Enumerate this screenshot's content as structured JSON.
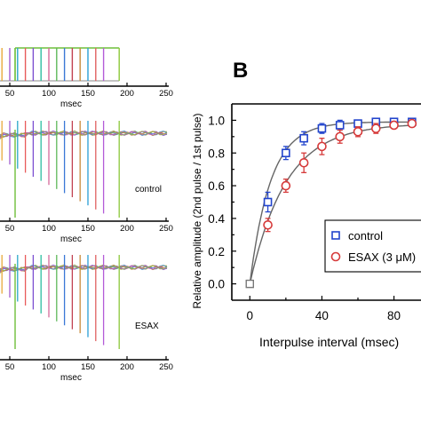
{
  "panel_label": "B",
  "chart_data": [
    {
      "id": "stimulus",
      "type": "line",
      "xlabel": "msec",
      "xlim": [
        0,
        250
      ],
      "xticks": [
        50,
        100,
        150,
        200,
        250
      ],
      "interval_starts": [
        40,
        50,
        60,
        70,
        80,
        90,
        100,
        110,
        120,
        130,
        140,
        150,
        160,
        170,
        190
      ],
      "colors": [
        "#e8a93a",
        "#a25cd0",
        "#2aa7c9",
        "#e85a5a",
        "#7c4fd0",
        "#2dbfa0",
        "#d66a9a",
        "#5eb85a",
        "#3a78d6",
        "#c04050",
        "#c78a3a",
        "#2a9fd6",
        "#e06060",
        "#b45cd8",
        "#8cc83a"
      ]
    },
    {
      "id": "control-traces",
      "type": "line",
      "label": "control",
      "xlabel": "msec",
      "xlim": [
        0,
        250
      ],
      "xticks": [
        50,
        100,
        150,
        200,
        250
      ]
    },
    {
      "id": "esax-traces",
      "type": "line",
      "label": "ESAX",
      "xlabel": "msec",
      "xlim": [
        0,
        250
      ],
      "xticks": [
        50,
        100,
        150,
        200,
        250
      ]
    },
    {
      "id": "paired-pulse",
      "type": "scatter",
      "xlabel": "Interpulse interval (msec)",
      "ylabel": "Relative amplitude (2nd pulse / 1st pulse)",
      "xlim": [
        -10,
        95
      ],
      "ylim": [
        -0.1,
        1.1
      ],
      "xticks": [
        0,
        40,
        80
      ],
      "yticks": [
        0.0,
        0.2,
        0.4,
        0.6,
        0.8,
        1.0
      ],
      "ytick_labels": [
        "0.0",
        "0.2",
        "0.4",
        "0.6",
        "0.8",
        "1.0"
      ],
      "legend_position": "lower-right",
      "series": [
        {
          "name": "control",
          "color": "#2244cc",
          "marker": "square",
          "x": [
            0,
            10,
            20,
            30,
            40,
            50,
            60,
            70,
            80,
            90
          ],
          "y": [
            0.0,
            0.5,
            0.8,
            0.89,
            0.95,
            0.97,
            0.98,
            0.99,
            0.99,
            0.99
          ],
          "err": [
            0.0,
            0.06,
            0.04,
            0.04,
            0.03,
            0.03,
            0.02,
            0.02,
            0.02,
            0.02
          ]
        },
        {
          "name": "ESAX (3 μM)",
          "color": "#d63a3a",
          "marker": "circle",
          "x": [
            0,
            10,
            20,
            30,
            40,
            50,
            60,
            70,
            80,
            90
          ],
          "y": [
            0.0,
            0.36,
            0.6,
            0.74,
            0.84,
            0.9,
            0.93,
            0.95,
            0.97,
            0.98
          ],
          "err": [
            0.0,
            0.04,
            0.04,
            0.06,
            0.05,
            0.04,
            0.03,
            0.03,
            0.02,
            0.02
          ]
        }
      ]
    }
  ]
}
